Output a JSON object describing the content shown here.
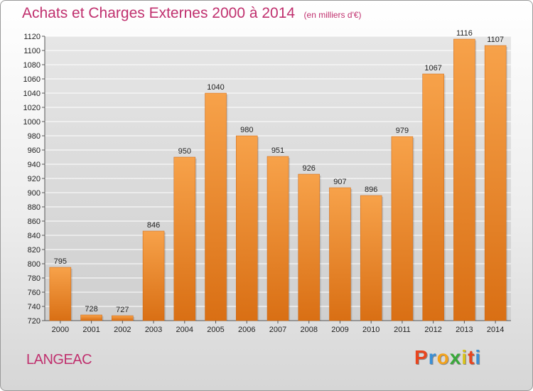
{
  "chart_data": {
    "type": "bar",
    "title": "Achats et Charges Externes 2000 à 2014",
    "subtitle": "(en milliers d'€)",
    "categories": [
      "2000",
      "2001",
      "2002",
      "2003",
      "2004",
      "2005",
      "2006",
      "2007",
      "2008",
      "2009",
      "2010",
      "2011",
      "2012",
      "2013",
      "2014"
    ],
    "values": [
      795,
      728,
      727,
      846,
      950,
      1040,
      980,
      951,
      926,
      907,
      896,
      979,
      1067,
      1116,
      1107
    ],
    "ylim": [
      720,
      1120
    ],
    "yticks": [
      720,
      740,
      760,
      780,
      800,
      820,
      840,
      860,
      880,
      900,
      920,
      940,
      960,
      980,
      1000,
      1020,
      1040,
      1060,
      1080,
      1100,
      1120
    ],
    "grid": true,
    "bar_color": "#f0922f"
  },
  "commune": "LANGEAC",
  "brand": {
    "letters": [
      "P",
      "r",
      "o",
      "x",
      "i",
      "t",
      "i"
    ],
    "colors": [
      "#e8451e",
      "#3a8fd6",
      "#f3a21b",
      "#39a93a",
      "#d8c21a",
      "#e8451e",
      "#3a8fd6"
    ]
  }
}
